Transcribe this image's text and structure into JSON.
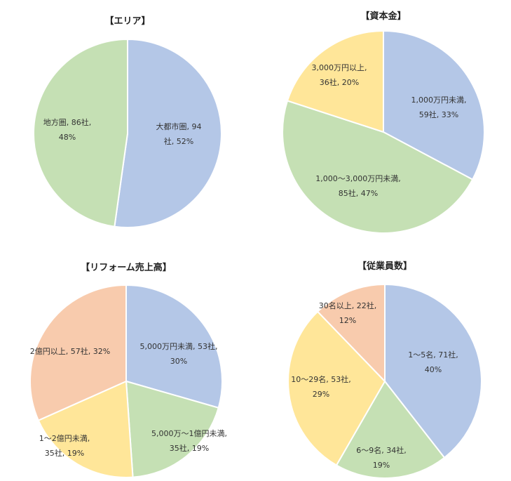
{
  "chart_data": [
    {
      "type": "pie",
      "title": "【エリア】",
      "categories": [
        "大都市圏",
        "地方圏"
      ],
      "values": [
        94,
        86
      ],
      "percents": [
        52,
        48
      ],
      "colors": [
        "#b4c7e7",
        "#c5e0b4"
      ],
      "data_labels": [
        [
          "大都市圏, 94",
          "社, 52%"
        ],
        [
          "地方圏, 86社,",
          "48%"
        ]
      ]
    },
    {
      "type": "pie",
      "title": "【資本金】",
      "categories": [
        "1,000万円未満",
        "1,000～3,000万円未満",
        "3,000万円以上"
      ],
      "values": [
        59,
        85,
        36
      ],
      "percents": [
        33,
        47,
        20
      ],
      "colors": [
        "#b4c7e7",
        "#c5e0b4",
        "#ffe699"
      ],
      "data_labels": [
        [
          "1,000万円未満,",
          "59社, 33%"
        ],
        [
          "1,000～3,000万円未満,",
          "85社, 47%"
        ],
        [
          "3,000万円以上,",
          "36社, 20%"
        ]
      ]
    },
    {
      "type": "pie",
      "title": "【リフォーム売上高】",
      "categories": [
        "5,000万円未満",
        "5,000万～1億円未満",
        "1～2億円未満",
        "2億円以上"
      ],
      "values": [
        53,
        35,
        35,
        57
      ],
      "percents": [
        30,
        19,
        19,
        32
      ],
      "colors": [
        "#b4c7e7",
        "#c5e0b4",
        "#ffe699",
        "#f8cbad"
      ],
      "data_labels": [
        [
          "5,000万円未満, 53社,",
          "30%"
        ],
        [
          "5,000万～1億円未満,",
          "35社, 19%"
        ],
        [
          "1～2億円未満,",
          "35社, 19%"
        ],
        [
          "2億円以上, 57社, 32%"
        ]
      ]
    },
    {
      "type": "pie",
      "title": "【従業員数】",
      "categories": [
        "1～5名",
        "6～9名",
        "10～29名",
        "30名以上"
      ],
      "values": [
        71,
        34,
        53,
        22
      ],
      "percents": [
        40,
        19,
        29,
        12
      ],
      "colors": [
        "#b4c7e7",
        "#c5e0b4",
        "#ffe699",
        "#f8cbad"
      ],
      "data_labels": [
        [
          "1～5名, 71社,",
          "40%"
        ],
        [
          "6～9名, 34社,",
          "19%"
        ],
        [
          "10～29名, 53社,",
          "29%"
        ],
        [
          "30名以上, 22社,",
          "12%"
        ]
      ]
    }
  ]
}
